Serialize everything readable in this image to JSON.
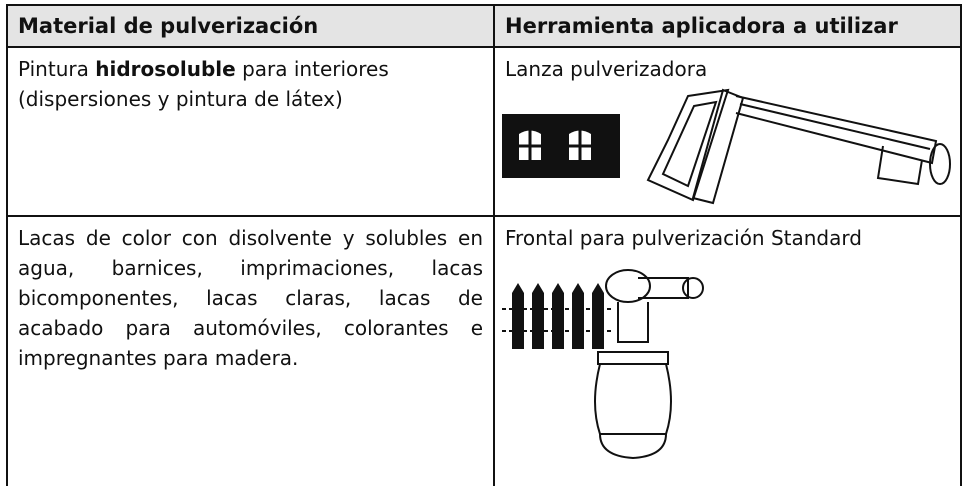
{
  "table": {
    "header": [
      "Material de pulverización",
      "Herramienta aplicadora a utilizar"
    ],
    "rows": [
      {
        "material": [
          "Pintura ",
          "hidrosoluble",
          " para interiores (dispersiones y pintura de látex)"
        ],
        "tool": "Lanza pulverizadora"
      },
      {
        "material": "Lacas de color con disolvente y solubles en agua, barnices, imprimaciones, lacas bicomponentes, lacas claras, lacas de acabado para automóviles, colorantes e impregnantes para madera.",
        "tool": "Frontal para pulverización Standard"
      }
    ]
  }
}
